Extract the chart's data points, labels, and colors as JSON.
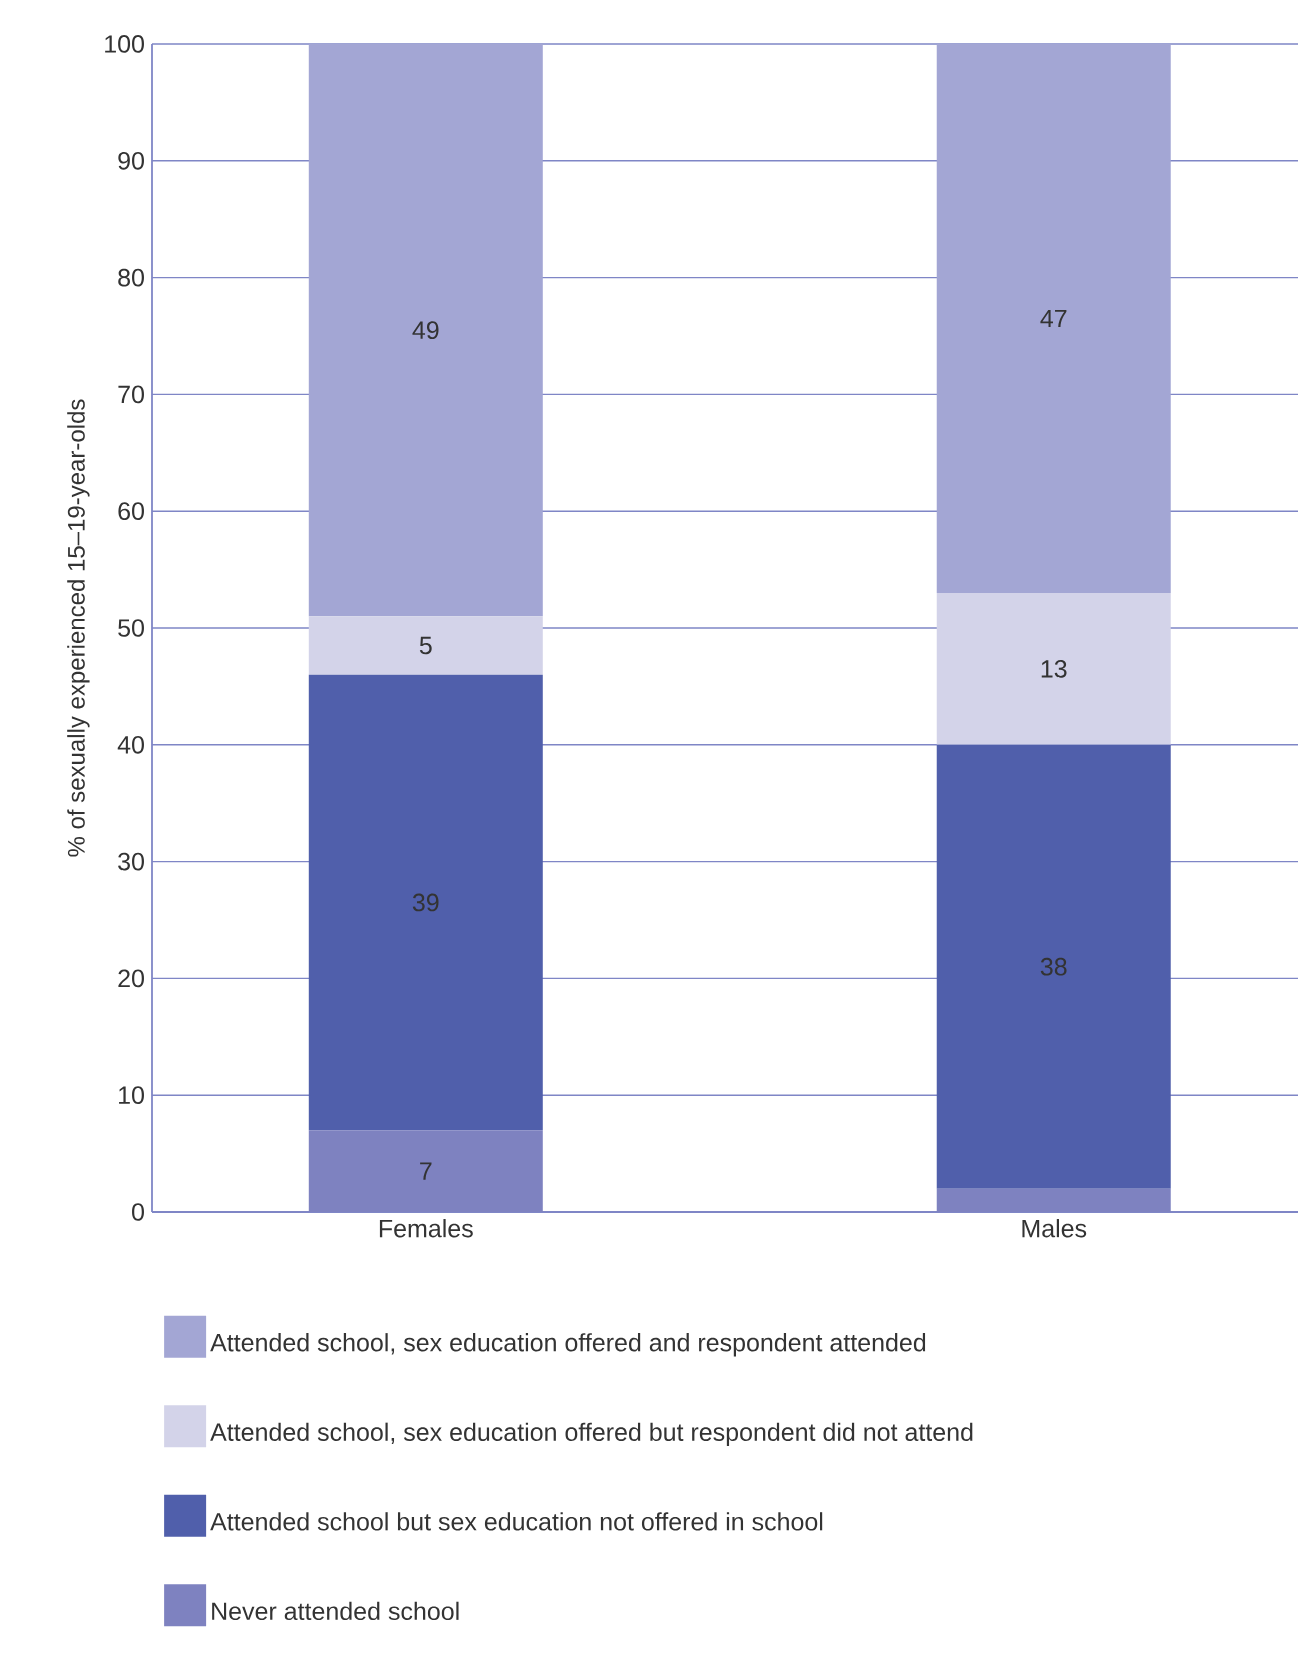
{
  "chart_data": {
    "type": "bar",
    "stacked": true,
    "ylabel": "% of sexually experienced 15–19-year-olds",
    "categories": [
      "Females",
      "Males"
    ],
    "series": [
      {
        "name": "Never attended school",
        "color": "#7e82c0",
        "values": [
          7,
          2
        ],
        "value_labels": [
          "7",
          null
        ]
      },
      {
        "name": "Attended school but sex education not offered in school",
        "color": "#505fab",
        "values": [
          39,
          38
        ],
        "value_labels": [
          "39",
          "38"
        ]
      },
      {
        "name": "Attended school, sex education offered but respondent did not attend",
        "color": "#d3d3e9",
        "values": [
          5,
          13
        ],
        "value_labels": [
          "5",
          "13"
        ]
      },
      {
        "name": "Attended school, sex education offered and respondent attended",
        "color": "#a3a6d4",
        "values": [
          49,
          47
        ],
        "value_labels": [
          "49",
          "47"
        ]
      }
    ],
    "ylim": [
      0,
      100
    ],
    "yticks": [
      0,
      10,
      20,
      30,
      40,
      50,
      60,
      70,
      80,
      90,
      100
    ],
    "grid": "y",
    "legend": "bottom"
  }
}
